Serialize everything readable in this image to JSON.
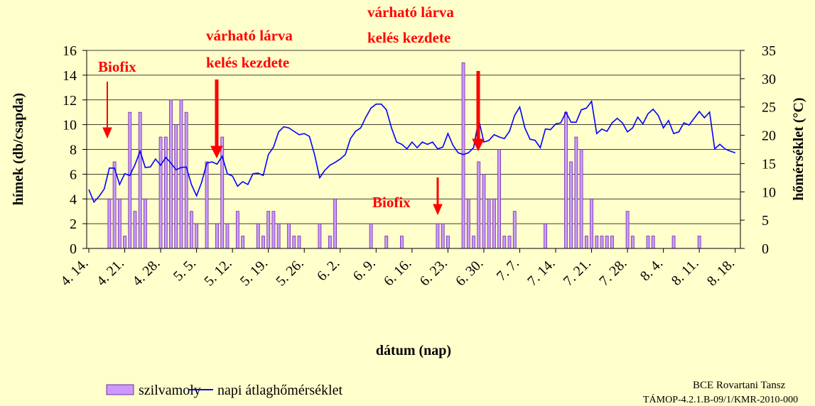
{
  "chart_data": {
    "type": "bar-line",
    "categories": [
      "4. 14.",
      null,
      null,
      null,
      null,
      null,
      null,
      "4. 21.",
      null,
      null,
      null,
      null,
      null,
      null,
      "4. 28.",
      null,
      null,
      null,
      null,
      null,
      null,
      "5. 5.",
      null,
      null,
      null,
      null,
      null,
      null,
      "5. 12.",
      null,
      null,
      null,
      null,
      null,
      null,
      "5. 19.",
      null,
      null,
      null,
      null,
      null,
      null,
      "5. 26.",
      null,
      null,
      null,
      null,
      null,
      null,
      "6. 2.",
      null,
      null,
      null,
      null,
      null,
      null,
      "6. 9.",
      null,
      null,
      null,
      null,
      null,
      null,
      "6. 16.",
      null,
      null,
      null,
      null,
      null,
      null,
      "6. 23.",
      null,
      null,
      null,
      null,
      null,
      null,
      "6. 30.",
      null,
      null,
      null,
      null,
      null,
      null,
      "7. 7.",
      null,
      null,
      null,
      null,
      null,
      null,
      "7. 14.",
      null,
      null,
      null,
      null,
      null,
      null,
      "7. 21.",
      null,
      null,
      null,
      null,
      null,
      null,
      "7. 28.",
      null,
      null,
      null,
      null,
      null,
      null,
      "8. 4.",
      null,
      null,
      null,
      null,
      null,
      null,
      "8. 11.",
      null,
      null,
      null,
      null,
      null,
      null,
      "8. 18."
    ],
    "series": [
      {
        "name": "szilvamoly",
        "type": "bar",
        "color": "#cc99ff",
        "axis": "y",
        "values": [
          0,
          0,
          0,
          0,
          4,
          7,
          4,
          1,
          11,
          3,
          11,
          4,
          0,
          0,
          9,
          9,
          12,
          10,
          12,
          11,
          3,
          2,
          0,
          7,
          0,
          2,
          9,
          2,
          0,
          3,
          1,
          0,
          0,
          2,
          1,
          3,
          3,
          2,
          0,
          2,
          1,
          1,
          0,
          0,
          0,
          2,
          0,
          1,
          4,
          0,
          0,
          0,
          0,
          0,
          0,
          2,
          0,
          0,
          1,
          0,
          0,
          1,
          0,
          0,
          0,
          0,
          0,
          0,
          2,
          2,
          1,
          0,
          0,
          15,
          4,
          1,
          7,
          6,
          4,
          4,
          8,
          1,
          1,
          3,
          0,
          0,
          0,
          0,
          0,
          2,
          0,
          0,
          0,
          11,
          7,
          9,
          8,
          1,
          4,
          1,
          1,
          1,
          1,
          0,
          0,
          3,
          1,
          0,
          0,
          1,
          1,
          0,
          0,
          0,
          1,
          0,
          0,
          0,
          0,
          1,
          0,
          0,
          0,
          0,
          0,
          0,
          0
        ]
      },
      {
        "name": "napi átlaghőmérséklet",
        "type": "line",
        "color": "#0000ff",
        "axis": "y2",
        "values": [
          10.4,
          8.2,
          9.2,
          10.5,
          14.2,
          14.2,
          11.3,
          13.2,
          12.9,
          14.8,
          17.2,
          14.3,
          14.4,
          15.8,
          14.7,
          16.1,
          15.1,
          13.9,
          14.3,
          14.4,
          11.3,
          9.3,
          11.7,
          15.1,
          15.3,
          14.9,
          16.3,
          13.2,
          12.8,
          11,
          11.8,
          11.3,
          13.2,
          13.3,
          12.9,
          16.6,
          17.9,
          20.6,
          21.5,
          21.3,
          20.7,
          20.1,
          20.3,
          19.8,
          16.6,
          12.5,
          13.8,
          14.7,
          15.2,
          15.8,
          16.6,
          19.4,
          20.7,
          21.3,
          23.2,
          24.8,
          25.5,
          25.5,
          24.5,
          21.3,
          18.8,
          18.4,
          17.6,
          18.8,
          17.8,
          18.8,
          18.4,
          18.8,
          17.6,
          17.9,
          20.3,
          18.2,
          16.9,
          16.6,
          16.9,
          17.8,
          22.8,
          18.8,
          19.1,
          20.1,
          19.7,
          19.4,
          20.7,
          23.5,
          25,
          21.3,
          19.3,
          19.1,
          17.8,
          21.1,
          21,
          22,
          22.2,
          24.1,
          22.3,
          22.3,
          24.5,
          24.8,
          26,
          20.3,
          21.1,
          20.7,
          22.2,
          23,
          22.2,
          20.6,
          21.3,
          23.2,
          22,
          23.8,
          24.6,
          23.5,
          21.3,
          22.6,
          20.3,
          20.6,
          22.2,
          21.8,
          23,
          24.2,
          23.1,
          24.1,
          17.6,
          18.4,
          17.6,
          17.2,
          16.9
        ]
      }
    ],
    "ylim": [
      0,
      16
    ],
    "yticks": [
      0,
      2,
      4,
      6,
      8,
      10,
      12,
      14,
      16
    ],
    "y2lim": [
      0,
      35
    ],
    "y2ticks": [
      0,
      5,
      10,
      15,
      20,
      25,
      30,
      35
    ],
    "grid": true,
    "xlabel": "dátum (nap)",
    "ylabel": "hímek (db/csapda)",
    "y2label": "hőmérséklet (°C)",
    "annotations": [
      [
        "Biofix"
      ],
      [
        "várható lárva",
        "kelés kezdete"
      ],
      [
        "várható lárva",
        "kelés kezdete"
      ],
      [
        "Biofix"
      ]
    ],
    "footer": [
      "BCE Rovartani Tansz",
      "TÁMOP-4.2.1.B-09/1/KMR-2010-000"
    ]
  }
}
